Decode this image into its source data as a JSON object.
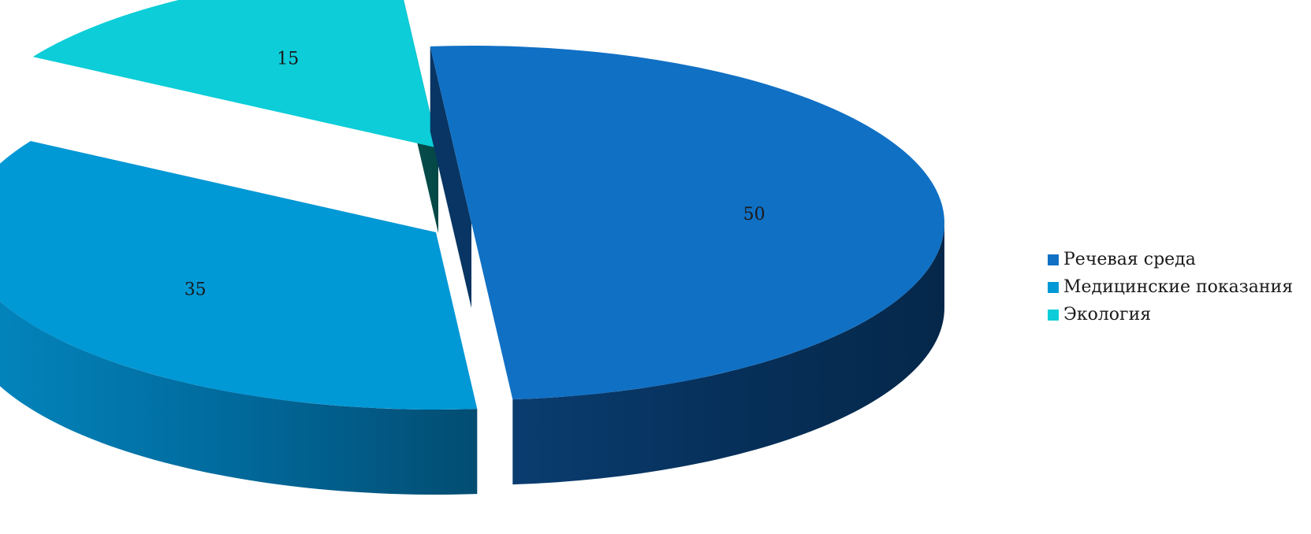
{
  "chart_data": {
    "type": "pie",
    "style": "3d-exploded",
    "title": "",
    "categories": [
      "Речевая среда",
      "Медицинские показания",
      "Экология"
    ],
    "values": [
      50,
      35,
      15
    ],
    "data_labels": [
      "50",
      "35",
      "15"
    ],
    "colors": [
      "#1070c4",
      "#0198d6",
      "#0ccdd8"
    ],
    "legend_placement": "right"
  }
}
